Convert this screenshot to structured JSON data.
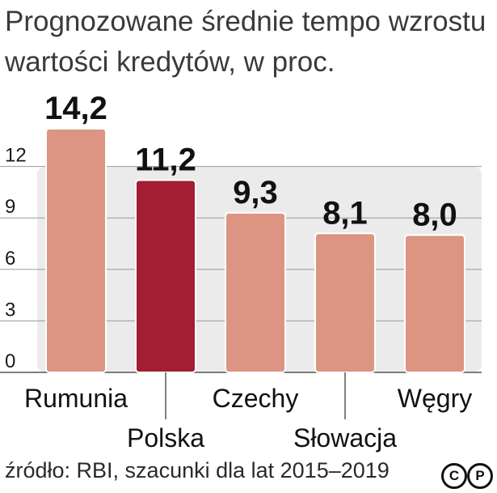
{
  "title_lines": [
    "Prognozowane średnie tempo wzrostu",
    "wartości kredytów, w proc."
  ],
  "source": "źródło: RBI, szacunki dla lat 2015–2019",
  "license_icons": [
    "copyright-icon",
    "p-icon"
  ],
  "license_glyphs": {
    "copyright": "C",
    "p": "P"
  },
  "colors": {
    "bar": "#dc9583",
    "bar_highlight": "#a31d33",
    "plot_bg": "#ebebeb",
    "grid": "#9a9a9a",
    "text": "#1a1a1a"
  },
  "chart_data": {
    "type": "bar",
    "title": "Prognozowane średnie tempo wzrostu wartości kredytów, w proc.",
    "categories": [
      "Rumunia",
      "Polska",
      "Czechy",
      "Słowacja",
      "Węgry"
    ],
    "values": [
      14.2,
      11.2,
      9.3,
      8.1,
      8.0
    ],
    "value_labels": [
      "14,2",
      "11,2",
      "9,3",
      "8,1",
      "8,0"
    ],
    "highlighted": "Polska",
    "yticks": [
      0,
      3,
      6,
      9,
      12
    ],
    "ylim": [
      0,
      12
    ],
    "grid": true,
    "xlabel": "",
    "ylabel": ""
  }
}
